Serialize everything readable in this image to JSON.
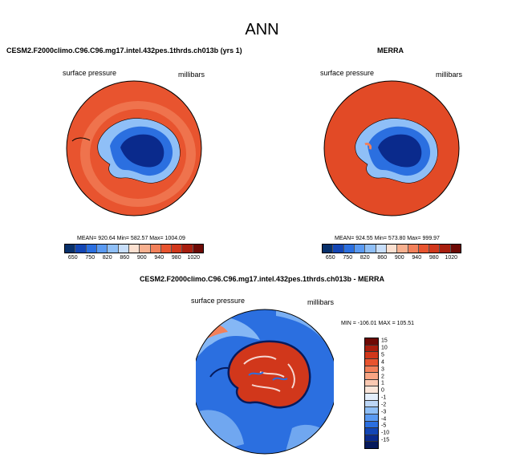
{
  "figure_title": "ANN",
  "panels": [
    {
      "title": "CESM2.F2000climo.C96.C96.mg17.intel.432pes.1thrds.ch013b (yrs 1)",
      "left_label": "surface pressure",
      "right_label": "millibars",
      "stats": "MEAN= 920.64   Min= 582.57   Max= 1004.09"
    },
    {
      "title": "MERRA",
      "left_label": "surface pressure",
      "right_label": "millibars",
      "stats": "MEAN= 924.55   Min= 573.80   Max= 999.97"
    },
    {
      "title": "CESM2.F2000climo.C96.C96.mg17.intel.432pes.1thrds.ch013b - MERRA",
      "left_label": "surface pressure",
      "right_label": "millibars",
      "stats": "MIN = -106.01  MAX = 105.51"
    }
  ],
  "abs_colorbar": {
    "labels": [
      "650",
      "750",
      "820",
      "860",
      "900",
      "940",
      "980",
      "1020"
    ],
    "colors": [
      "#08306b",
      "#1346b5",
      "#2b6fe0",
      "#5a9af2",
      "#8fbff7",
      "#c7defa",
      "#fbe0d0",
      "#f7b08f",
      "#f2805a",
      "#e8542f",
      "#d1371b",
      "#a81e0e",
      "#6e0a05"
    ]
  },
  "diff_colorbar": {
    "labels": [
      "15",
      "10",
      "5",
      "4",
      "3",
      "2",
      "1",
      "0",
      "-1",
      "-2",
      "-3",
      "-4",
      "-5",
      "-10",
      "-15"
    ],
    "colors": [
      "#6e0a05",
      "#a81e0e",
      "#d1371b",
      "#e8542f",
      "#f2805a",
      "#f7a584",
      "#fbc9b2",
      "#fbe6da",
      "#e3eefb",
      "#bcd6f6",
      "#8fbff7",
      "#5a9af2",
      "#2b6fe0",
      "#1346b5",
      "#0a2a8c",
      "#061a5c"
    ]
  },
  "map_colors": {
    "ocean_model": "#e8542f",
    "ocean_model_light": "#f2805a",
    "ocean_obs": "#e24a26",
    "ice_outer": "#8fbff7",
    "ice_mid": "#2b6fe0",
    "ice_deep": "#0a2a8c",
    "diff_ocean": "#2b6fe0",
    "diff_light": "#8fbff7",
    "diff_land": "#d1371b"
  }
}
